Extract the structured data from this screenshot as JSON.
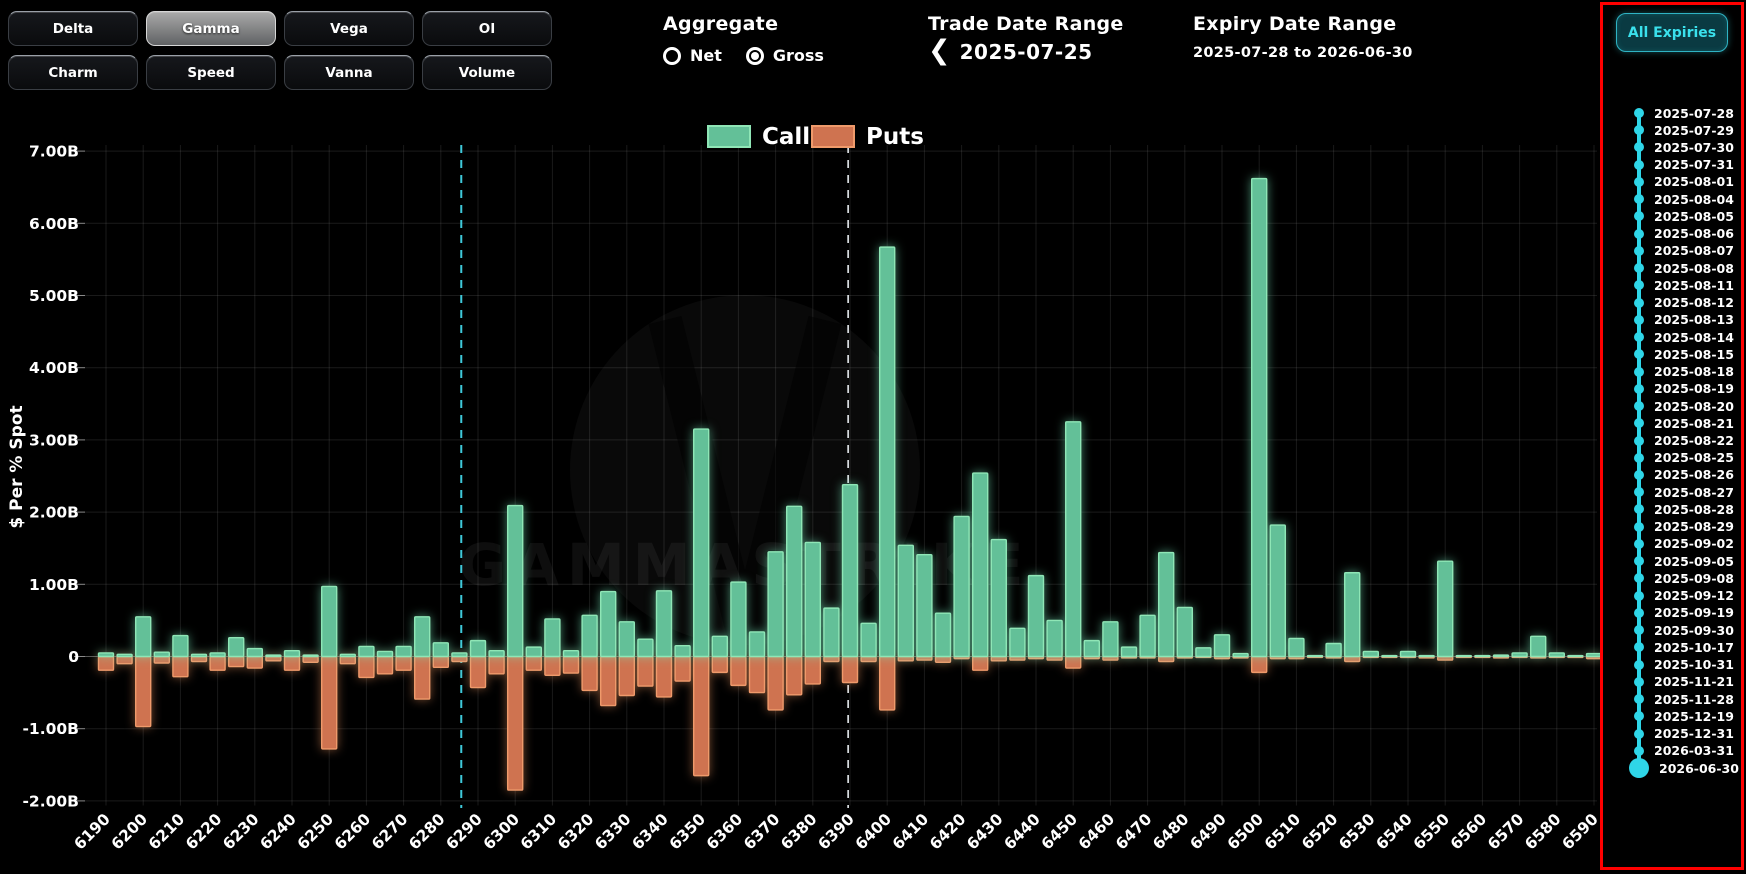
{
  "controls": {
    "greek_buttons": [
      {
        "label": "Delta",
        "selected": false
      },
      {
        "label": "Gamma",
        "selected": true
      },
      {
        "label": "Vega",
        "selected": false
      },
      {
        "label": "OI",
        "selected": false
      },
      {
        "label": "Charm",
        "selected": false
      },
      {
        "label": "Speed",
        "selected": false
      },
      {
        "label": "Vanna",
        "selected": false
      },
      {
        "label": "Volume",
        "selected": false
      }
    ],
    "aggregate": {
      "label": "Aggregate",
      "options": [
        {
          "label": "Net",
          "selected": false
        },
        {
          "label": "Gross",
          "selected": true
        }
      ]
    },
    "trade_date_range": {
      "title": "Trade Date Range",
      "prev_icon": "❮",
      "value": "2025-07-25"
    },
    "expiry_date_range": {
      "title": "Expiry Date Range",
      "value": "2025-07-28 to 2026-06-30"
    }
  },
  "expiry_panel": {
    "all_expiries_label": "All Expiries",
    "border_color": "#ff0000",
    "accent": "#2fd6e8",
    "dates": [
      "2025-07-28",
      "2025-07-29",
      "2025-07-30",
      "2025-07-31",
      "2025-08-01",
      "2025-08-04",
      "2025-08-05",
      "2025-08-06",
      "2025-08-07",
      "2025-08-08",
      "2025-08-11",
      "2025-08-12",
      "2025-08-13",
      "2025-08-14",
      "2025-08-15",
      "2025-08-18",
      "2025-08-19",
      "2025-08-20",
      "2025-08-21",
      "2025-08-22",
      "2025-08-25",
      "2025-08-26",
      "2025-08-27",
      "2025-08-28",
      "2025-08-29",
      "2025-09-02",
      "2025-09-05",
      "2025-09-08",
      "2025-09-12",
      "2025-09-19",
      "2025-09-30",
      "2025-10-17",
      "2025-10-31",
      "2025-11-21",
      "2025-11-28",
      "2025-12-19",
      "2025-12-31",
      "2026-03-31",
      "2026-06-30"
    ]
  },
  "chart_data": {
    "type": "bar",
    "title": "",
    "ylabel": "$ Per % Spot",
    "legend": [
      "Calls",
      "Puts"
    ],
    "legend_position": "top-center",
    "grid": true,
    "watermark": "GAMMASTRIKE",
    "x_start": 6190,
    "x_step": 5,
    "strikes": [
      6190,
      6195,
      6200,
      6205,
      6210,
      6215,
      6220,
      6225,
      6230,
      6235,
      6240,
      6245,
      6250,
      6255,
      6260,
      6265,
      6270,
      6275,
      6280,
      6285,
      6290,
      6295,
      6300,
      6305,
      6310,
      6315,
      6320,
      6325,
      6330,
      6335,
      6340,
      6345,
      6350,
      6355,
      6360,
      6365,
      6370,
      6375,
      6380,
      6385,
      6390,
      6395,
      6400,
      6405,
      6410,
      6415,
      6420,
      6425,
      6430,
      6435,
      6440,
      6445,
      6450,
      6455,
      6460,
      6465,
      6470,
      6475,
      6480,
      6485,
      6490,
      6495,
      6500,
      6505,
      6510,
      6515,
      6520,
      6525,
      6530,
      6535,
      6540,
      6545,
      6550,
      6555,
      6560,
      6565,
      6570,
      6575,
      6580,
      6585,
      6590
    ],
    "series": [
      {
        "name": "Calls",
        "unit": "B",
        "values": [
          0.05,
          0.03,
          0.55,
          0.06,
          0.29,
          0.03,
          0.05,
          0.26,
          0.11,
          0.02,
          0.08,
          0.02,
          0.97,
          0.03,
          0.14,
          0.07,
          0.14,
          0.55,
          0.19,
          0.05,
          0.22,
          0.08,
          2.09,
          0.13,
          0.52,
          0.08,
          0.57,
          0.9,
          0.48,
          0.24,
          0.91,
          0.15,
          3.15,
          0.28,
          1.03,
          0.34,
          1.45,
          2.08,
          1.58,
          0.67,
          2.38,
          0.46,
          5.67,
          1.54,
          1.41,
          0.6,
          1.94,
          2.54,
          1.62,
          0.39,
          1.12,
          0.5,
          3.25,
          0.22,
          0.48,
          0.13,
          0.57,
          1.44,
          0.68,
          0.12,
          0.3,
          0.04,
          6.62,
          1.82,
          0.25,
          0.01,
          0.18,
          1.16,
          0.07,
          0.01,
          0.07,
          0.01,
          1.32,
          0.01,
          0.01,
          0.02,
          0.05,
          0.28,
          0.05,
          0.01,
          0.04
        ]
      },
      {
        "name": "Puts",
        "unit": "B",
        "values": [
          -0.19,
          -0.1,
          -0.97,
          -0.09,
          -0.28,
          -0.07,
          -0.19,
          -0.14,
          -0.16,
          -0.06,
          -0.19,
          -0.08,
          -1.28,
          -0.1,
          -0.29,
          -0.24,
          -0.19,
          -0.59,
          -0.15,
          -0.07,
          -0.43,
          -0.24,
          -1.85,
          -0.19,
          -0.26,
          -0.23,
          -0.47,
          -0.68,
          -0.54,
          -0.41,
          -0.56,
          -0.34,
          -1.65,
          -0.22,
          -0.4,
          -0.5,
          -0.74,
          -0.53,
          -0.38,
          -0.07,
          -0.36,
          -0.07,
          -0.74,
          -0.06,
          -0.05,
          -0.08,
          -0.03,
          -0.19,
          -0.06,
          -0.05,
          -0.03,
          -0.05,
          -0.16,
          -0.03,
          -0.05,
          -0.02,
          -0.02,
          -0.07,
          -0.02,
          -0.01,
          -0.03,
          -0.02,
          -0.22,
          -0.03,
          -0.03,
          -0.01,
          -0.02,
          -0.07,
          -0.01,
          -0.01,
          -0.01,
          -0.02,
          -0.05,
          -0.01,
          -0.01,
          -0.02,
          -0.01,
          -0.02,
          -0.01,
          -0.01,
          -0.03
        ]
      }
    ],
    "x_tick_labels": [
      6190,
      6200,
      6210,
      6220,
      6230,
      6240,
      6250,
      6260,
      6270,
      6280,
      6290,
      6300,
      6310,
      6320,
      6330,
      6340,
      6350,
      6360,
      6370,
      6380,
      6390,
      6400,
      6410,
      6420,
      6430,
      6440,
      6450,
      6460,
      6470,
      6480,
      6490,
      6500,
      6510,
      6520,
      6530,
      6540,
      6550,
      6560,
      6570,
      6580,
      6590
    ],
    "y_ticks": [
      {
        "value": 7,
        "label": "7.00B"
      },
      {
        "value": 6,
        "label": "6.00B"
      },
      {
        "value": 5,
        "label": "5.00B"
      },
      {
        "value": 4,
        "label": "4.00B"
      },
      {
        "value": 3,
        "label": "3.00B"
      },
      {
        "value": 2,
        "label": "2.00B"
      },
      {
        "value": 1,
        "label": "1.00B"
      },
      {
        "value": 0,
        "label": "0"
      },
      {
        "value": -1,
        "label": "-1.00B"
      },
      {
        "value": -2,
        "label": "-2.00B"
      }
    ],
    "ylim": [
      -2.4,
      7.2
    ],
    "vlines": [
      {
        "x": 6285.5,
        "color": "#3fc9da",
        "style": "dashed",
        "width": 2
      },
      {
        "x": 6389.5,
        "color": "#d9dde0",
        "style": "dashed",
        "width": 1.7
      }
    ],
    "colors": {
      "calls": "#63c098",
      "calls_edge": "#8fe6b6",
      "puts": "#cf7350",
      "puts_edge": "#ef9a6b",
      "grid": "rgba(255,255,255,0.10)",
      "zero_line": "rgba(255,255,255,0.28)"
    }
  }
}
